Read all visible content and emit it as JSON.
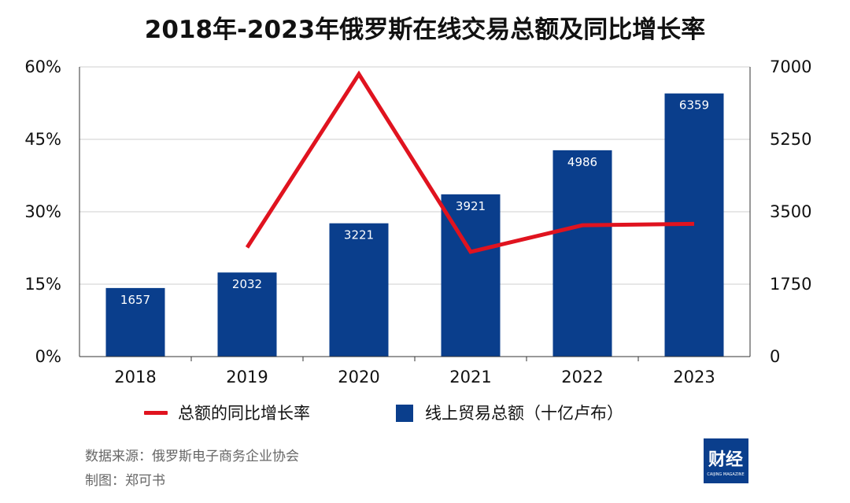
{
  "chart_data": {
    "type": "bar+line",
    "title": "2018年-2023年俄罗斯在线交易总额及同比增长率",
    "categories": [
      "2018",
      "2019",
      "2020",
      "2021",
      "2022",
      "2023"
    ],
    "series": [
      {
        "name": "线上贸易总额（十亿卢布）",
        "type": "bar",
        "axis": "right",
        "color": "#0a3e8c",
        "values": [
          1657,
          2032,
          3221,
          3921,
          4986,
          6359
        ],
        "labels": [
          "1657",
          "2032",
          "3221",
          "3921",
          "4986",
          "6359"
        ]
      },
      {
        "name": "总额的同比增长率",
        "type": "line",
        "axis": "left",
        "color": "#e0131f",
        "values": [
          null,
          22.6,
          58.5,
          21.7,
          27.2,
          27.5
        ]
      }
    ],
    "y_left": {
      "range": [
        0,
        60
      ],
      "ticks": [
        "0%",
        "15%",
        "30%",
        "45%",
        "60%"
      ]
    },
    "y_right": {
      "range": [
        0,
        7000
      ],
      "ticks": [
        "0",
        "1750",
        "3500",
        "5250",
        "7000"
      ]
    },
    "grid": "horizontal",
    "legend_position": "bottom"
  },
  "footer": {
    "source": "数据来源：俄罗斯电子商务企业协会",
    "author": "制图：郑可书"
  },
  "logo": {
    "text": "财经",
    "subtext": "CAIJING MAGAZINE",
    "color": "#0a3e8c"
  }
}
